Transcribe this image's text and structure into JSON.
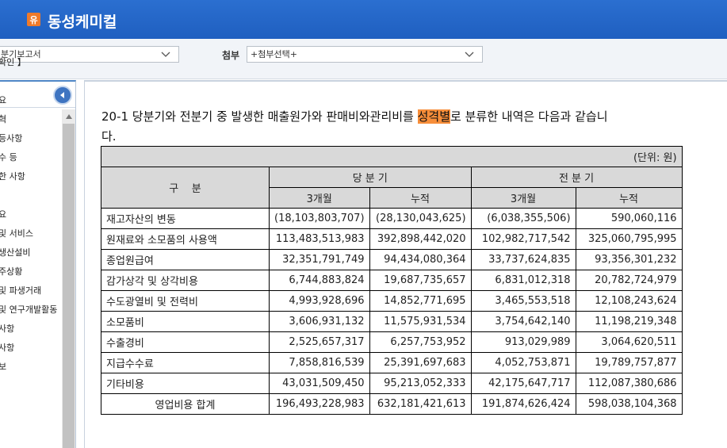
{
  "header": {
    "logo_text": "유",
    "company_name": "동성케미컬"
  },
  "selectors": {
    "report_value": "분기보고서",
    "attach_label": "첨부",
    "attach_value": "+첨부선택+"
  },
  "sidebar": {
    "items": [
      "확인 】",
      "요",
      "혁",
      "등사항",
      "수 등",
      "한 사항",
      "요",
      "및 서비스",
      "생산설비",
      "주상황",
      "및 파생거래",
      "및 연구개발활동",
      "사항",
      "사항",
      "보"
    ]
  },
  "content": {
    "para_pre": "20-1 당분기와 전분기 중 발생한 매출원가와 판매비와관리비를 ",
    "para_highlight": "성격별",
    "para_post": "로 분류한 내역은 다음과 같습니다.",
    "unit": "(단위: 원)",
    "head": {
      "category": "구    분",
      "current": "당 분 기",
      "previous": "전 분 기",
      "three_months": "3개월",
      "cumulative": "누적"
    },
    "rows": [
      {
        "label": "재고자산의 변동",
        "c3": "(18,103,803,707)",
        "ccum": "(28,130,043,625)",
        "p3": "(6,038,355,506)",
        "pcum": "590,060,116"
      },
      {
        "label": "원재료와 소모품의 사용액",
        "c3": "113,483,513,983",
        "ccum": "392,898,442,020",
        "p3": "102,982,717,542",
        "pcum": "325,060,795,995"
      },
      {
        "label": "종업원급여",
        "c3": "32,351,791,749",
        "ccum": "94,434,080,364",
        "p3": "33,737,624,835",
        "pcum": "93,356,301,232"
      },
      {
        "label": "감가상각 및 상각비용",
        "c3": "6,744,883,824",
        "ccum": "19,687,735,657",
        "p3": "6,831,012,318",
        "pcum": "20,782,724,979"
      },
      {
        "label": "수도광열비 및 전력비",
        "c3": "4,993,928,696",
        "ccum": "14,852,771,695",
        "p3": "3,465,553,518",
        "pcum": "12,108,243,624"
      },
      {
        "label": "소모품비",
        "c3": "3,606,931,132",
        "ccum": "11,575,931,534",
        "p3": "3,754,642,140",
        "pcum": "11,198,219,348"
      },
      {
        "label": "수출경비",
        "c3": "2,525,657,317",
        "ccum": "6,257,753,952",
        "p3": "913,029,989",
        "pcum": "3,064,620,511"
      },
      {
        "label": "지급수수료",
        "c3": "7,858,816,539",
        "ccum": "25,391,697,683",
        "p3": "4,052,753,871",
        "pcum": "19,789,757,877"
      },
      {
        "label": "기타비용",
        "c3": "43,031,509,450",
        "ccum": "95,213,052,333",
        "p3": "42,175,647,717",
        "pcum": "112,087,380,686"
      }
    ],
    "total": {
      "label": "영업비용 합계",
      "c3": "196,493,228,983",
      "ccum": "632,181,421,613",
      "p3": "191,874,626,424",
      "pcum": "598,038,104,368"
    }
  }
}
